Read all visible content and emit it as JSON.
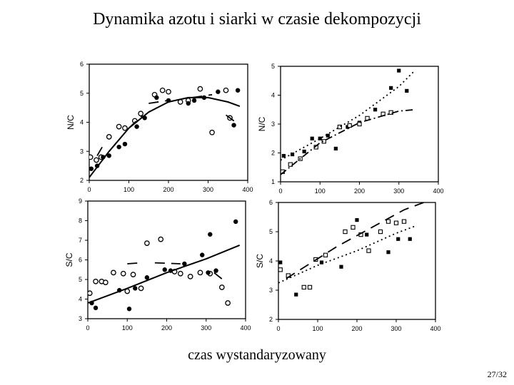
{
  "slide": {
    "title": "Dynamika azotu i siarki w czasie dekompozycji",
    "xaxis_caption": "czas wystandaryzowany",
    "page_number": "27/32"
  },
  "chart_data": [
    {
      "type": "scatter",
      "ylabel": "N/C",
      "xlim": [
        0,
        400
      ],
      "ylim": [
        2,
        6
      ],
      "xticks": [
        "0",
        "100",
        "200",
        "300",
        "400"
      ],
      "yticks": [
        "2",
        "3",
        "4",
        "5",
        "6"
      ],
      "series": [
        {
          "marker": "open-circle",
          "points": [
            [
              3,
              2.8
            ],
            [
              18,
              2.7
            ],
            [
              30,
              2.8
            ],
            [
              50,
              3.5
            ],
            [
              75,
              3.85
            ],
            [
              90,
              3.8
            ],
            [
              115,
              4.05
            ],
            [
              130,
              4.3
            ],
            [
              165,
              4.95
            ],
            [
              185,
              5.1
            ],
            [
              200,
              5.05
            ],
            [
              230,
              4.7
            ],
            [
              250,
              4.75
            ],
            [
              280,
              5.15
            ],
            [
              310,
              3.65
            ],
            [
              345,
              5.1
            ],
            [
              355,
              4.15
            ]
          ]
        },
        {
          "marker": "filled-circle",
          "points": [
            [
              5,
              2.4
            ],
            [
              20,
              2.5
            ],
            [
              35,
              2.8
            ],
            [
              50,
              2.85
            ],
            [
              75,
              3.15
            ],
            [
              90,
              3.25
            ],
            [
              120,
              3.85
            ],
            [
              140,
              4.15
            ],
            [
              170,
              4.85
            ],
            [
              200,
              4.75
            ],
            [
              250,
              4.65
            ],
            [
              265,
              4.75
            ],
            [
              290,
              4.85
            ],
            [
              325,
              5.05
            ],
            [
              365,
              3.9
            ],
            [
              375,
              5.1
            ]
          ]
        },
        {
          "marker": "solid-line",
          "points": [
            [
              0,
              2.1
            ],
            [
              50,
              3.0
            ],
            [
              100,
              3.8
            ],
            [
              150,
              4.35
            ],
            [
              200,
              4.7
            ],
            [
              250,
              4.85
            ],
            [
              300,
              4.85
            ],
            [
              350,
              4.7
            ],
            [
              380,
              4.55
            ]
          ]
        },
        {
          "marker": "dashed-line",
          "points": [
            [
              20,
              2.85
            ],
            [
              35,
              3.2
            ]
          ]
        },
        {
          "marker": "dashed-line",
          "points": [
            [
              100,
              3.8
            ],
            [
              135,
              4.25
            ]
          ]
        },
        {
          "marker": "dashed-line",
          "points": [
            [
              150,
              4.65
            ],
            [
              200,
              4.75
            ]
          ]
        },
        {
          "marker": "dashed-line",
          "points": [
            [
              260,
              4.85
            ],
            [
              310,
              4.95
            ]
          ]
        },
        {
          "marker": "dashed-line",
          "points": [
            [
              345,
              4.25
            ],
            [
              375,
              3.95
            ]
          ]
        }
      ]
    },
    {
      "type": "scatter",
      "ylabel": "N/C",
      "xlim": [
        0,
        400
      ],
      "ylim": [
        1,
        5
      ],
      "xticks": [
        "0",
        "100",
        "200",
        "300",
        "400"
      ],
      "yticks": [
        "1",
        "2",
        "3",
        "4",
        "5"
      ],
      "series": [
        {
          "marker": "filled-square",
          "points": [
            [
              8,
              1.9
            ],
            [
              30,
              1.95
            ],
            [
              60,
              2.05
            ],
            [
              80,
              2.5
            ],
            [
              100,
              2.5
            ],
            [
              120,
              2.6
            ],
            [
              140,
              2.15
            ],
            [
              170,
              2.9
            ],
            [
              200,
              3.05
            ],
            [
              240,
              3.5
            ],
            [
              280,
              4.25
            ],
            [
              300,
              4.85
            ],
            [
              320,
              4.15
            ]
          ]
        },
        {
          "marker": "open-square",
          "points": [
            [
              5,
              1.35
            ],
            [
              25,
              1.6
            ],
            [
              50,
              1.8
            ],
            [
              90,
              2.2
            ],
            [
              110,
              2.4
            ],
            [
              150,
              2.9
            ],
            [
              175,
              2.95
            ],
            [
              200,
              3.0
            ],
            [
              220,
              3.2
            ],
            [
              260,
              3.35
            ],
            [
              280,
              3.4
            ]
          ]
        },
        {
          "marker": "dotted-line",
          "points": [
            [
              0,
              1.75
            ],
            [
              100,
              2.5
            ],
            [
              200,
              3.3
            ],
            [
              300,
              4.3
            ],
            [
              340,
              4.85
            ]
          ]
        },
        {
          "marker": "dash-dot-line",
          "points": [
            [
              0,
              1.25
            ],
            [
              100,
              2.35
            ],
            [
              200,
              3.05
            ],
            [
              300,
              3.45
            ],
            [
              340,
              3.5
            ]
          ]
        }
      ]
    },
    {
      "type": "scatter",
      "ylabel": "S/C",
      "xlim": [
        0,
        400
      ],
      "ylim": [
        3,
        9
      ],
      "xticks": [
        "0",
        "100",
        "200",
        "300",
        "400"
      ],
      "yticks": [
        "3",
        "4",
        "5",
        "6",
        "7",
        "8",
        "9"
      ],
      "series": [
        {
          "marker": "open-circle",
          "points": [
            [
              5,
              4.3
            ],
            [
              20,
              4.9
            ],
            [
              35,
              4.9
            ],
            [
              45,
              4.85
            ],
            [
              65,
              5.35
            ],
            [
              90,
              5.3
            ],
            [
              100,
              4.4
            ],
            [
              115,
              5.25
            ],
            [
              135,
              4.55
            ],
            [
              150,
              6.85
            ],
            [
              185,
              7.05
            ],
            [
              220,
              5.4
            ],
            [
              235,
              5.3
            ],
            [
              260,
              5.15
            ],
            [
              285,
              5.35
            ],
            [
              310,
              5.3
            ],
            [
              340,
              4.6
            ],
            [
              355,
              3.8
            ]
          ]
        },
        {
          "marker": "filled-circle",
          "points": [
            [
              10,
              3.8
            ],
            [
              20,
              3.55
            ],
            [
              80,
              4.45
            ],
            [
              105,
              3.5
            ],
            [
              120,
              4.55
            ],
            [
              150,
              5.1
            ],
            [
              195,
              5.5
            ],
            [
              210,
              5.45
            ],
            [
              245,
              5.8
            ],
            [
              290,
              6.25
            ],
            [
              305,
              5.35
            ],
            [
              310,
              7.3
            ],
            [
              325,
              5.45
            ],
            [
              375,
              7.95
            ]
          ]
        },
        {
          "marker": "solid-line",
          "points": [
            [
              0,
              3.8
            ],
            [
              100,
              4.55
            ],
            [
              200,
              5.35
            ],
            [
              300,
              6.05
            ],
            [
              385,
              6.75
            ]
          ]
        },
        {
          "marker": "dashed-line",
          "points": [
            [
              100,
              5.8
            ],
            [
              135,
              5.85
            ]
          ]
        },
        {
          "marker": "dashed-line",
          "points": [
            [
              170,
              5.85
            ],
            [
              235,
              5.8
            ]
          ]
        },
        {
          "marker": "dashed-line",
          "points": [
            [
              320,
              5.35
            ],
            [
              345,
              4.95
            ]
          ]
        }
      ]
    },
    {
      "type": "scatter",
      "ylabel": "S/C",
      "xlim": [
        0,
        400
      ],
      "ylim": [
        2,
        6
      ],
      "xticks": [
        "0",
        "100",
        "200",
        "300",
        "400"
      ],
      "yticks": [
        "2",
        "3",
        "4",
        "5",
        "6"
      ],
      "series": [
        {
          "marker": "filled-square",
          "points": [
            [
              5,
              3.95
            ],
            [
              45,
              2.85
            ],
            [
              110,
              3.95
            ],
            [
              160,
              3.8
            ],
            [
              200,
              5.4
            ],
            [
              225,
              4.9
            ],
            [
              280,
              4.3
            ],
            [
              305,
              4.75
            ],
            [
              335,
              4.75
            ]
          ]
        },
        {
          "marker": "open-square",
          "points": [
            [
              5,
              3.7
            ],
            [
              25,
              3.5
            ],
            [
              65,
              3.1
            ],
            [
              80,
              3.1
            ],
            [
              95,
              4.05
            ],
            [
              120,
              4.2
            ],
            [
              170,
              5.0
            ],
            [
              190,
              5.15
            ],
            [
              210,
              4.9
            ],
            [
              230,
              4.35
            ],
            [
              260,
              5.0
            ],
            [
              280,
              5.35
            ],
            [
              300,
              5.3
            ],
            [
              320,
              5.35
            ]
          ]
        },
        {
          "marker": "dashed-line",
          "points": [
            [
              20,
              3.4
            ],
            [
              150,
              4.5
            ],
            [
              320,
              5.75
            ],
            [
              370,
              6.0
            ]
          ]
        },
        {
          "marker": "dotted-line",
          "points": [
            [
              0,
              3.25
            ],
            [
              100,
              3.85
            ],
            [
              200,
              4.35
            ],
            [
              300,
              4.95
            ],
            [
              350,
              5.2
            ]
          ]
        }
      ]
    }
  ]
}
